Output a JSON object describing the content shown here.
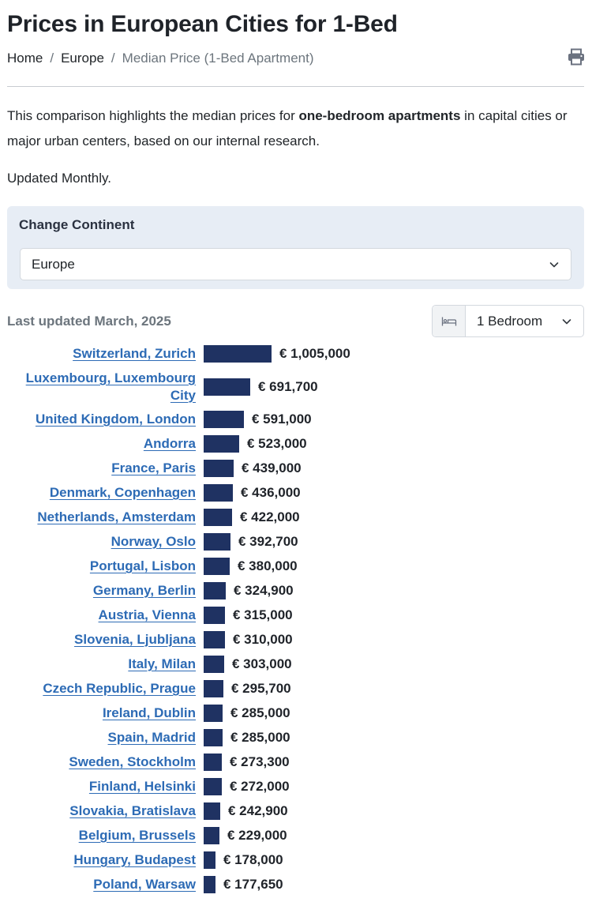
{
  "page": {
    "title": "Prices in European Cities for 1-Bed",
    "breadcrumb": {
      "home": "Home",
      "sep1": "/",
      "europe": "Europe",
      "sep2": "/",
      "current": "Median Price (1-Bed Apartment)"
    },
    "intro_before": "This comparison highlights the median prices for ",
    "intro_bold": "one-bedroom apartments",
    "intro_after": " in capital cities or major urban centers, based on our internal research.",
    "updated_note": "Updated Monthly."
  },
  "continent_filter": {
    "label": "Change Continent",
    "selected": "Europe"
  },
  "last_updated": "Last updated March, 2025",
  "bedroom_filter": {
    "selected": "1 Bedroom"
  },
  "icons": {
    "print": "printer-icon",
    "bed": "bed-icon",
    "chevron": "chevron-down-icon"
  },
  "colors": {
    "bar": "#1f3262",
    "link": "#2d6bb5",
    "panel": "#e7edf5"
  },
  "chart_data": {
    "type": "bar",
    "orientation": "horizontal",
    "currency": "€",
    "categories": [
      "Switzerland, Zurich",
      "Luxembourg, Luxembourg City",
      "United Kingdom, London",
      "Andorra",
      "France, Paris",
      "Denmark, Copenhagen",
      "Netherlands, Amsterdam",
      "Norway, Oslo",
      "Portugal, Lisbon",
      "Germany, Berlin",
      "Austria, Vienna",
      "Slovenia, Ljubljana",
      "Italy, Milan",
      "Czech Republic, Prague",
      "Ireland, Dublin",
      "Spain, Madrid",
      "Sweden, Stockholm",
      "Finland, Helsinki",
      "Slovakia, Bratislava",
      "Belgium, Brussels",
      "Hungary, Budapest",
      "Poland, Warsaw"
    ],
    "values": [
      1005000,
      691700,
      591000,
      523000,
      439000,
      436000,
      422000,
      392700,
      380000,
      324900,
      315000,
      310000,
      303000,
      295700,
      285000,
      285000,
      273300,
      272000,
      242900,
      229000,
      178000,
      177650
    ],
    "value_labels": [
      "€ 1,005,000",
      "€ 691,700",
      "€ 591,000",
      "€ 523,000",
      "€ 439,000",
      "€ 436,000",
      "€ 422,000",
      "€ 392,700",
      "€ 380,000",
      "€ 324,900",
      "€ 315,000",
      "€ 310,000",
      "€ 303,000",
      "€ 295,700",
      "€ 285,000",
      "€ 285,000",
      "€ 273,300",
      "€ 272,000",
      "€ 242,900",
      "€ 229,000",
      "€ 178,000",
      "€ 177,650"
    ],
    "title": "",
    "xlabel": "",
    "ylabel": ""
  }
}
